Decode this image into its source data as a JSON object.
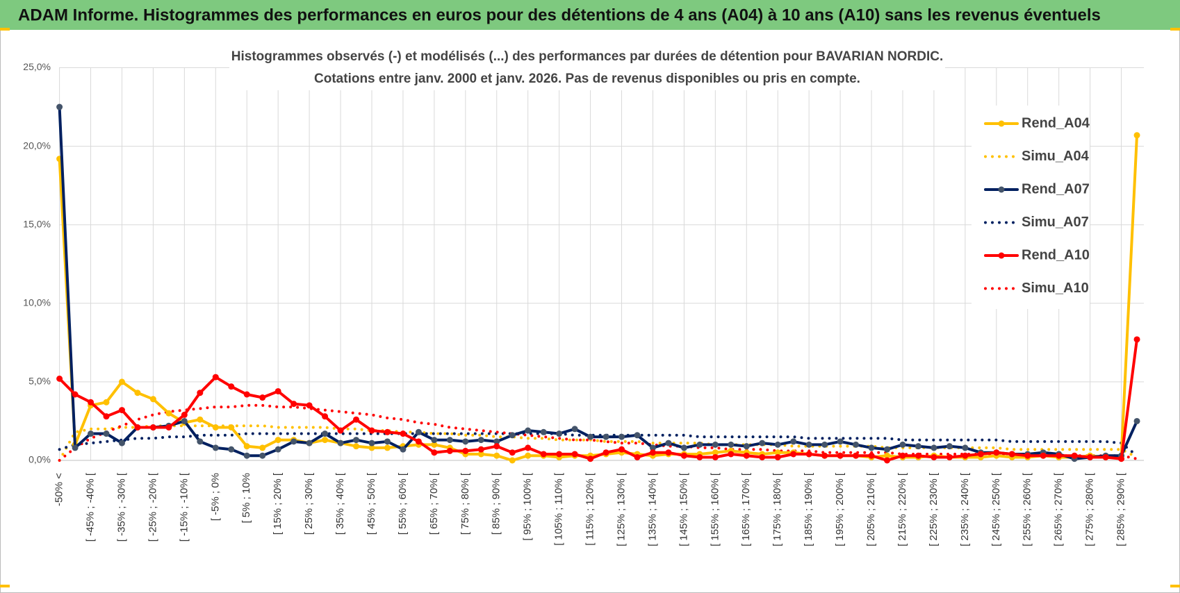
{
  "chart_data": {
    "type": "line",
    "title": "ADAM Informe. Histogrammes des performances en euros pour des détentions de 4 ans (A04) à 10 ans (A10) sans les revenus éventuels",
    "subtitle": [
      "Histogrammes observés (-) et modélisés (...) des performances par durées de détention pour BAVARIAN NORDIC.",
      "Cotations entre janv. 2000 et janv. 2026. Pas de revenus disponibles ou pris en compte."
    ],
    "categories": [
      "-50% <",
      null,
      "[ -45% ; -40% [",
      null,
      "[ -35% ; -30% [",
      null,
      "[ -25% ; -20% [",
      null,
      "[ -15% ; -10% [",
      null,
      "[ -5% ; 0%",
      null,
      "[ 5% ; 10%",
      null,
      "[ 15% ; 20% [",
      null,
      "[ 25% ; 30% [",
      null,
      "[ 35% ; 40% [",
      null,
      "[ 45% ; 50% [",
      null,
      "[ 55% ; 60% [",
      null,
      "[ 65% ; 70% [",
      null,
      "[ 75% ; 80% [",
      null,
      "[ 85% ; 90% [",
      null,
      "[ 95% ; 100% [",
      null,
      "[ 105% ; 110% [",
      null,
      "[ 115% ; 120% [",
      null,
      "[ 125% ; 130% [",
      null,
      "[ 135% ; 140% [",
      null,
      "[ 145% ; 150% [",
      null,
      "[ 155% ; 160% [",
      null,
      "[ 165% ; 170% [",
      null,
      "[ 175% ; 180% [",
      null,
      "[ 185% ; 190% [",
      null,
      "[ 195% ; 200% [",
      null,
      "[ 205% ; 210% [",
      null,
      "[ 215% ; 220% [",
      null,
      "[ 225% ; 230% [",
      null,
      "[ 235% ; 240% [",
      null,
      "[ 245% ; 250% [",
      null,
      "[ 255% ; 260% [",
      null,
      "[ 265% ; 270% [",
      null,
      "[ 275% ; 280% [",
      null,
      "[ 285% ; 290% [",
      null
    ],
    "series": [
      {
        "name": "Rend_A04",
        "color": "#ffc000",
        "style": "solid",
        "markers": true,
        "values": [
          19.2,
          1.0,
          3.5,
          3.7,
          5.0,
          4.3,
          3.9,
          3.0,
          2.4,
          2.6,
          2.1,
          2.1,
          0.9,
          0.8,
          1.3,
          1.3,
          1.1,
          1.3,
          1.1,
          0.9,
          0.8,
          0.8,
          0.9,
          1.0,
          1.0,
          0.8,
          0.4,
          0.4,
          0.3,
          0.0,
          0.3,
          0.3,
          0.2,
          0.3,
          0.3,
          0.4,
          0.5,
          0.4,
          0.3,
          0.4,
          0.4,
          0.4,
          0.5,
          0.6,
          0.5,
          0.4,
          0.5,
          0.5,
          0.4,
          0.3,
          0.3,
          0.3,
          0.2,
          0.3,
          0.2,
          0.2,
          0.3,
          0.2,
          0.2,
          0.2,
          0.3,
          0.2,
          0.2,
          0.3,
          0.2,
          0.2,
          0.3,
          0.2,
          0.3,
          20.7
        ]
      },
      {
        "name": "Simu_A04",
        "color": "#ffc000",
        "style": "dotted",
        "markers": false,
        "values": [
          0.0,
          1.8,
          2.0,
          2.0,
          2.1,
          2.1,
          2.2,
          2.2,
          2.2,
          2.2,
          2.2,
          2.2,
          2.2,
          2.2,
          2.1,
          2.1,
          2.1,
          2.1,
          2.0,
          2.0,
          1.9,
          1.9,
          1.8,
          1.8,
          1.7,
          1.7,
          1.6,
          1.6,
          1.5,
          1.5,
          1.4,
          1.4,
          1.3,
          1.3,
          1.3,
          1.2,
          1.2,
          1.2,
          1.1,
          1.1,
          1.1,
          1.1,
          1.0,
          1.0,
          1.0,
          1.0,
          1.0,
          0.9,
          0.9,
          0.9,
          0.9,
          0.9,
          0.9,
          0.8,
          0.8,
          0.8,
          0.8,
          0.8,
          0.8,
          0.8,
          0.8,
          0.7,
          0.7,
          0.7,
          0.7,
          0.7,
          0.7,
          0.7,
          0.7,
          0.2
        ]
      },
      {
        "name": "Rend_A07",
        "color": "#002060",
        "marker_color": "#44546a",
        "style": "solid",
        "markers": true,
        "values": [
          22.5,
          0.8,
          1.7,
          1.7,
          1.1,
          2.1,
          2.1,
          2.2,
          2.5,
          1.2,
          0.8,
          0.7,
          0.3,
          0.3,
          0.7,
          1.2,
          1.1,
          1.7,
          1.1,
          1.3,
          1.1,
          1.2,
          0.7,
          1.8,
          1.3,
          1.3,
          1.2,
          1.3,
          1.2,
          1.6,
          1.9,
          1.8,
          1.7,
          2.0,
          1.5,
          1.5,
          1.5,
          1.6,
          0.8,
          1.1,
          0.8,
          1.0,
          1.0,
          1.0,
          0.9,
          1.1,
          1.0,
          1.2,
          1.0,
          1.0,
          1.2,
          1.0,
          0.8,
          0.7,
          1.0,
          0.9,
          0.8,
          0.9,
          0.8,
          0.5,
          0.5,
          0.4,
          0.4,
          0.5,
          0.4,
          0.1,
          0.2,
          0.3,
          0.3,
          2.5
        ]
      },
      {
        "name": "Simu_A07",
        "color": "#002060",
        "style": "dotted",
        "markers": false,
        "values": [
          0.7,
          1.0,
          1.1,
          1.2,
          1.3,
          1.4,
          1.4,
          1.5,
          1.5,
          1.6,
          1.6,
          1.6,
          1.7,
          1.7,
          1.7,
          1.7,
          1.7,
          1.7,
          1.7,
          1.7,
          1.7,
          1.7,
          1.7,
          1.7,
          1.7,
          1.7,
          1.7,
          1.7,
          1.7,
          1.7,
          1.7,
          1.7,
          1.7,
          1.6,
          1.6,
          1.6,
          1.6,
          1.6,
          1.6,
          1.6,
          1.6,
          1.5,
          1.5,
          1.5,
          1.5,
          1.5,
          1.5,
          1.5,
          1.4,
          1.4,
          1.4,
          1.4,
          1.4,
          1.4,
          1.3,
          1.3,
          1.3,
          1.3,
          1.3,
          1.3,
          1.3,
          1.2,
          1.2,
          1.2,
          1.2,
          1.2,
          1.2,
          1.2,
          1.1,
          0.3
        ]
      },
      {
        "name": "Rend_A10",
        "color": "#ff0000",
        "style": "solid",
        "markers": true,
        "values": [
          5.2,
          4.2,
          3.7,
          2.8,
          3.2,
          2.1,
          2.1,
          2.1,
          2.9,
          4.3,
          5.3,
          4.7,
          4.2,
          4.0,
          4.4,
          3.6,
          3.5,
          2.8,
          1.9,
          2.6,
          1.9,
          1.8,
          1.7,
          1.2,
          0.5,
          0.6,
          0.6,
          0.7,
          0.9,
          0.5,
          0.8,
          0.4,
          0.4,
          0.4,
          0.1,
          0.5,
          0.7,
          0.2,
          0.5,
          0.5,
          0.3,
          0.2,
          0.2,
          0.4,
          0.3,
          0.2,
          0.2,
          0.4,
          0.4,
          0.3,
          0.3,
          0.3,
          0.3,
          0.0,
          0.3,
          0.3,
          0.2,
          0.2,
          0.3,
          0.4,
          0.5,
          0.4,
          0.3,
          0.3,
          0.3,
          0.3,
          0.2,
          0.2,
          0.1,
          7.7
        ]
      },
      {
        "name": "Simu_A10",
        "color": "#ff0000",
        "style": "dotted",
        "markers": false,
        "values": [
          0.0,
          0.8,
          1.4,
          1.8,
          2.2,
          2.6,
          2.9,
          3.1,
          3.2,
          3.3,
          3.4,
          3.4,
          3.5,
          3.5,
          3.4,
          3.4,
          3.3,
          3.2,
          3.1,
          3.0,
          2.9,
          2.7,
          2.6,
          2.4,
          2.3,
          2.1,
          2.0,
          1.9,
          1.8,
          1.7,
          1.6,
          1.5,
          1.4,
          1.3,
          1.3,
          1.2,
          1.1,
          1.1,
          1.0,
          0.9,
          0.9,
          0.8,
          0.8,
          0.7,
          0.7,
          0.7,
          0.6,
          0.6,
          0.6,
          0.5,
          0.5,
          0.5,
          0.5,
          0.5,
          0.4,
          0.4,
          0.4,
          0.4,
          0.4,
          0.4,
          0.4,
          0.4,
          0.3,
          0.3,
          0.3,
          0.3,
          0.3,
          0.3,
          0.3,
          0.1
        ]
      }
    ],
    "ylim": [
      0,
      25
    ],
    "yticks": [
      {
        "value": 0,
        "label": "0,0%"
      },
      {
        "value": 5,
        "label": "5,0%"
      },
      {
        "value": 10,
        "label": "10,0%"
      },
      {
        "value": 15,
        "label": "15,0%"
      },
      {
        "value": 20,
        "label": "20,0%"
      },
      {
        "value": 25,
        "label": "25,0%"
      }
    ],
    "grid": true,
    "legend": "right"
  }
}
